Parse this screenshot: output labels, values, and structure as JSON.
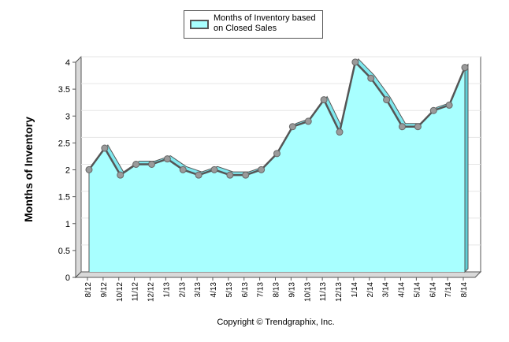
{
  "chart_data": {
    "type": "area",
    "title": "",
    "ylabel": "Months of Inventory",
    "xlabel": "",
    "ylim": [
      0,
      4
    ],
    "yticks": [
      "0",
      "0.5",
      "1",
      "1.5",
      "2",
      "2.5",
      "3",
      "3.5",
      "4"
    ],
    "categories": [
      "8/12",
      "9/12",
      "10/12",
      "11/12",
      "12/12",
      "1/13",
      "2/13",
      "3/13",
      "4/13",
      "5/13",
      "6/13",
      "7/13",
      "8/13",
      "9/13",
      "10/13",
      "11/13",
      "12/13",
      "1/14",
      "2/14",
      "3/14",
      "4/14",
      "5/14",
      "6/14",
      "7/14",
      "8/14"
    ],
    "series": [
      {
        "name": "Months of Inventory based on Closed Sales",
        "values": [
          1.9,
          2.3,
          1.8,
          2.0,
          2.0,
          2.1,
          1.9,
          1.8,
          1.9,
          1.8,
          1.8,
          1.9,
          2.2,
          2.7,
          2.8,
          3.2,
          2.6,
          3.9,
          3.6,
          3.2,
          2.7,
          2.7,
          3.0,
          3.1,
          3.8
        ]
      }
    ],
    "legend_position": "top-center",
    "colors": {
      "fill": "#a8ffff",
      "line": "#555555",
      "marker": "#9a9a9a"
    }
  },
  "legend": {
    "label": "Months of Inventory based on Closed Sales"
  },
  "copyright": "Copyright © Trendgraphix, Inc."
}
